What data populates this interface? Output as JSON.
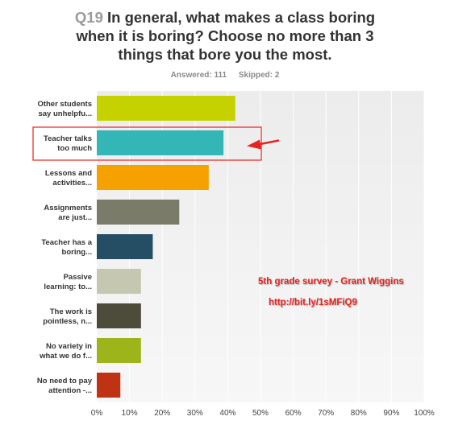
{
  "question": {
    "number": "Q19",
    "text_lines": [
      "In general, what makes a class boring",
      "when it is boring? Choose no more than 3",
      "things that bore you the most."
    ]
  },
  "stats": {
    "answered": "Answered: 111",
    "skipped": "Skipped: 2"
  },
  "annotation": {
    "line1": "5th grade survey - Grant Wiggins",
    "line2": "http://bit.ly/1sMFiQ9"
  },
  "chart_data": {
    "type": "bar",
    "orientation": "horizontal",
    "categories": [
      [
        "Other students",
        "say unhelpfu..."
      ],
      [
        "Teacher talks",
        "too much"
      ],
      [
        "Lessons and",
        "activities..."
      ],
      [
        "Assignments",
        "are just..."
      ],
      [
        "Teacher has a",
        "boring..."
      ],
      [
        "Passive",
        "learning: to..."
      ],
      [
        "The work is",
        "pointless, n..."
      ],
      [
        "No variety in",
        "what we do f..."
      ],
      [
        "No need to pay",
        "attention -..."
      ]
    ],
    "values": [
      42.3,
      38.7,
      34.2,
      25.2,
      17.1,
      13.5,
      13.5,
      13.5,
      7.2
    ],
    "colors": [
      "#c5d200",
      "#34b5b6",
      "#f5a100",
      "#7a7b68",
      "#254d63",
      "#c5c7b1",
      "#4d4b39",
      "#9db51b",
      "#bf3213"
    ],
    "x_ticks": [
      "0%",
      "10%",
      "20%",
      "30%",
      "40%",
      "50%",
      "60%",
      "70%",
      "80%",
      "90%",
      "100%"
    ],
    "xlim": [
      0,
      100
    ],
    "grid": true,
    "highlighted_category_index": 1
  }
}
